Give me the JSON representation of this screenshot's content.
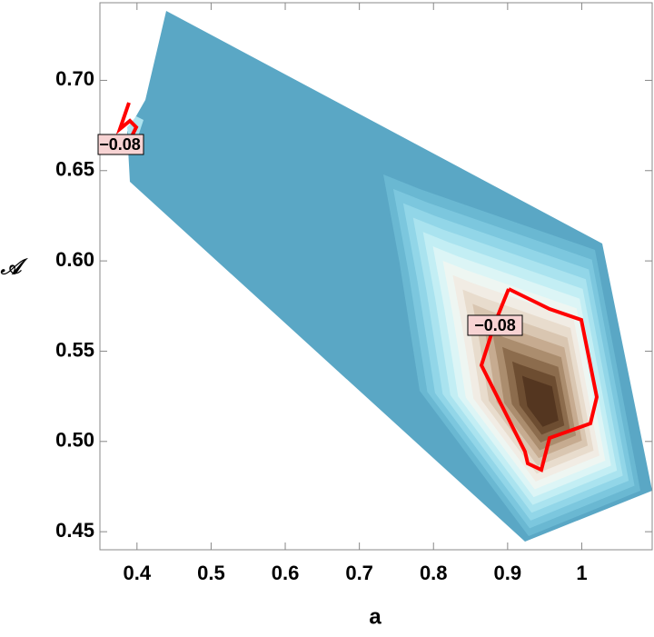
{
  "chart_data": {
    "type": "contour",
    "x_label": "a",
    "y_label": "𝒜",
    "xlim": [
      0.35,
      1.095
    ],
    "ylim": [
      0.44,
      0.743
    ],
    "xticks": [
      0.4,
      0.5,
      0.6,
      0.7,
      0.8,
      0.9,
      1.0
    ],
    "yticks": [
      0.45,
      {
        "value": 0.5,
        "label": "0.50"
      },
      0.55,
      {
        "value": 0.6,
        "label": "0.60"
      },
      0.65,
      {
        "value": 0.7,
        "label": "0.70"
      }
    ],
    "contour_levels": [
      {
        "value": -0.08,
        "label": "−0.08",
        "color": "#ff0000"
      }
    ]
  }
}
